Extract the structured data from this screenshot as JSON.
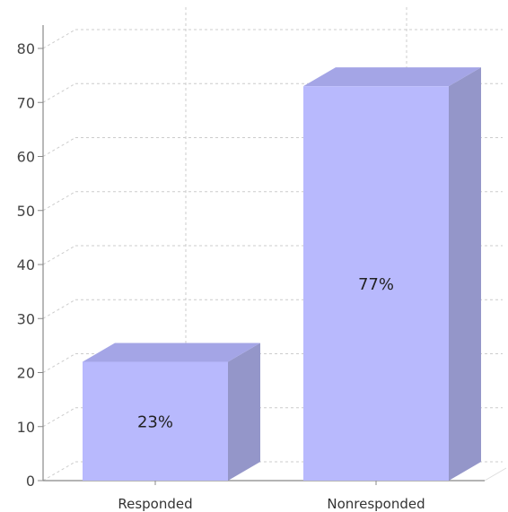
{
  "chart_data": {
    "type": "bar",
    "title": "",
    "xlabel": "",
    "ylabel": "",
    "categories": [
      "Responded",
      "Nonresponded"
    ],
    "values": [
      22,
      73
    ],
    "data_labels": [
      "23%",
      "77%"
    ],
    "ylim": [
      0,
      80
    ],
    "yticks": [
      0,
      10,
      20,
      30,
      40,
      50,
      60,
      70,
      80
    ],
    "grid": true,
    "legend": "none",
    "style": "3d-column",
    "colors": {
      "front": "#b8b9fd",
      "top": "#a4a5e6",
      "side": "#9496c9",
      "grid": "#cccccc",
      "axis": "#888888"
    }
  }
}
